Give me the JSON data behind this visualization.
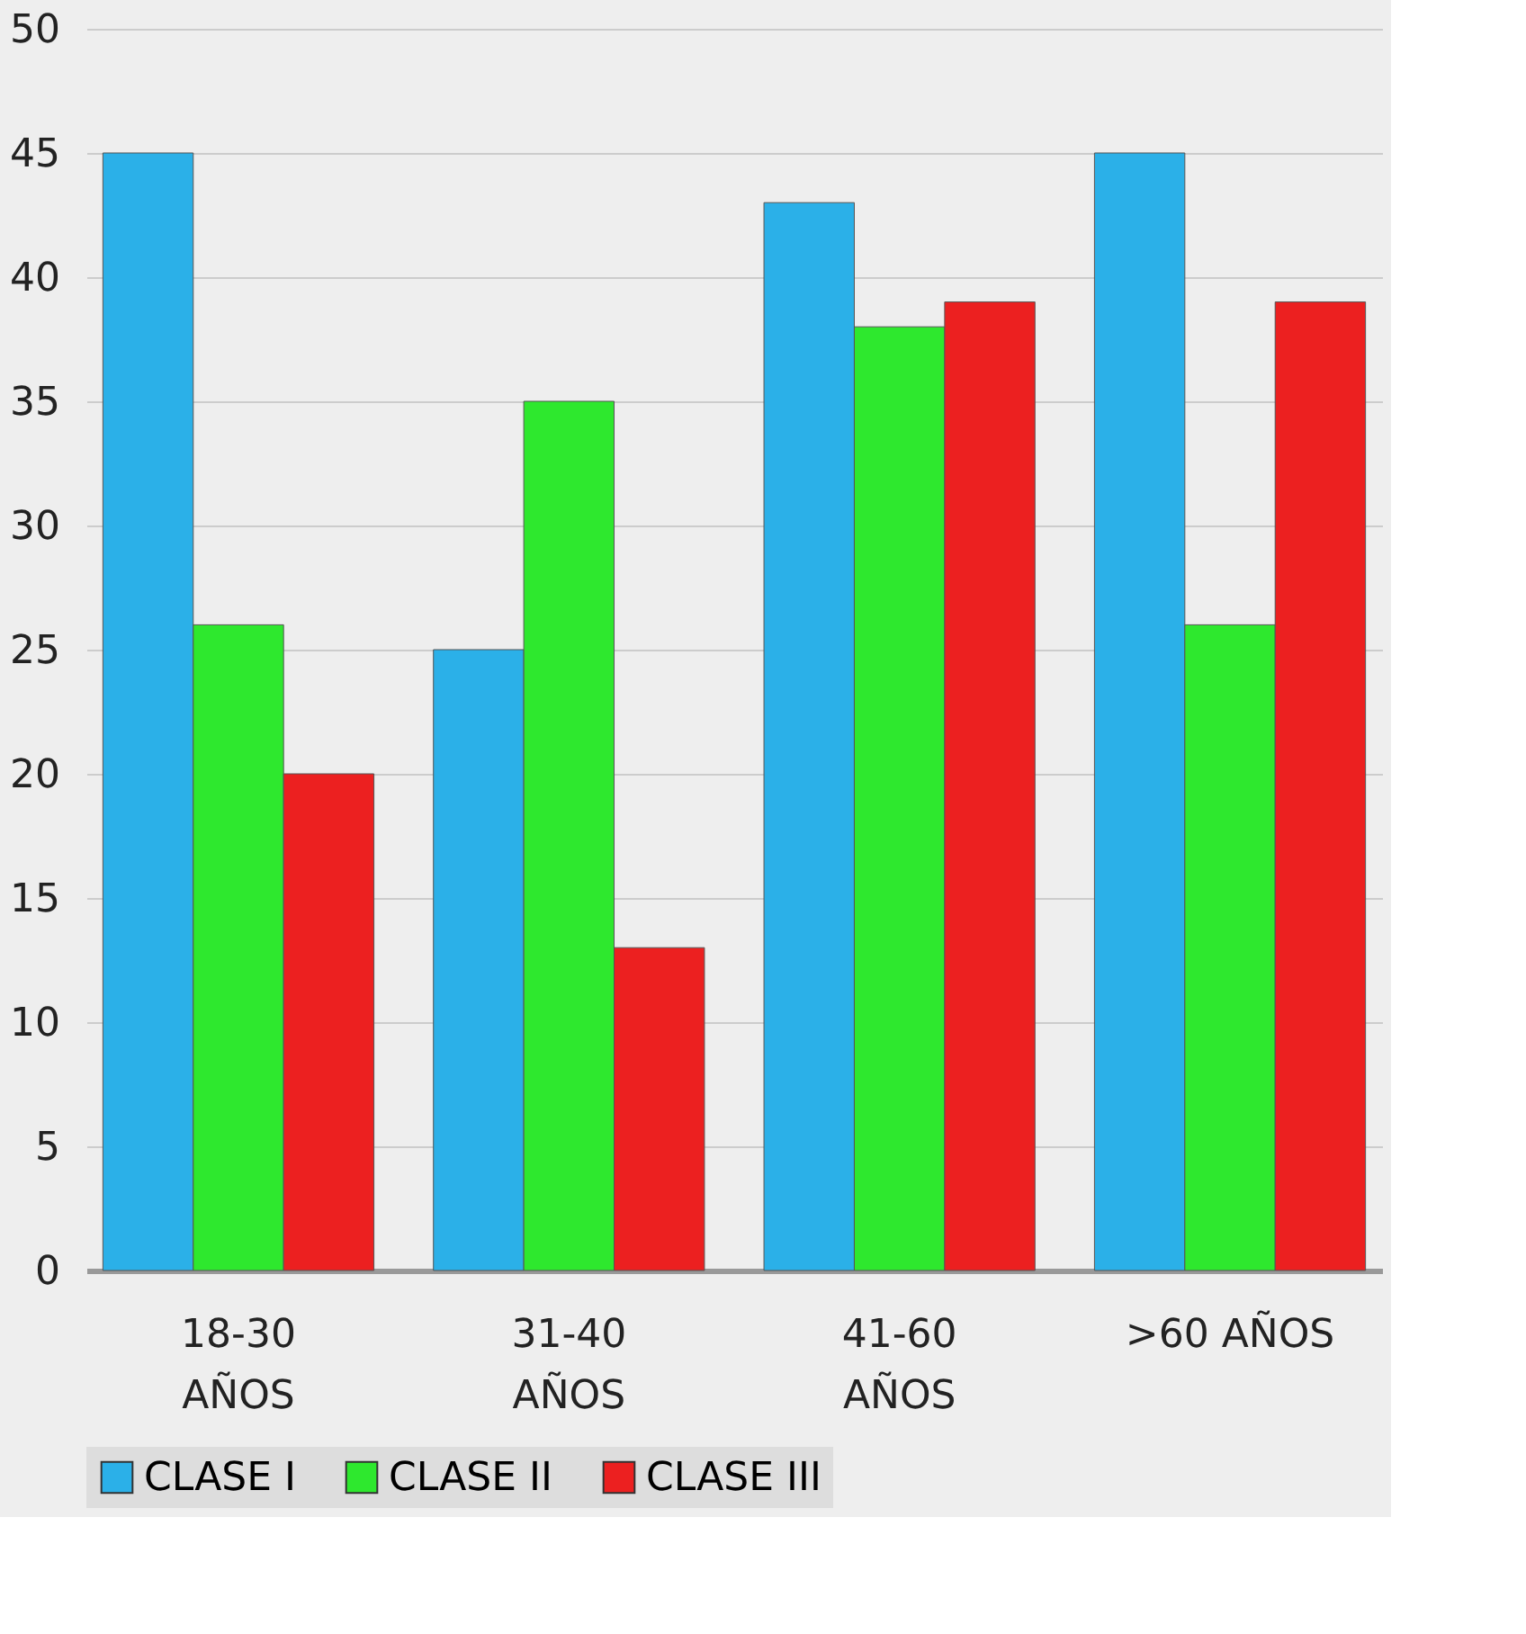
{
  "chart_data": {
    "type": "bar",
    "categories": [
      "18-30 AÑOS",
      "31-40 AÑOS",
      "41-60 AÑOS",
      ">60 AÑOS"
    ],
    "series": [
      {
        "name": "CLASE I",
        "color": "#2bb0e8",
        "values": [
          45,
          25,
          43,
          45
        ]
      },
      {
        "name": "CLASE II",
        "color": "#2ee82e",
        "values": [
          26,
          35,
          38,
          26
        ]
      },
      {
        "name": "CLASE III",
        "color": "#ec2020",
        "values": [
          20,
          13,
          39,
          39
        ]
      }
    ],
    "ylim": [
      0,
      50
    ],
    "yticks": [
      0,
      5,
      10,
      15,
      20,
      25,
      30,
      35,
      40,
      45,
      50
    ],
    "grid": "y",
    "legend": "bottom"
  }
}
